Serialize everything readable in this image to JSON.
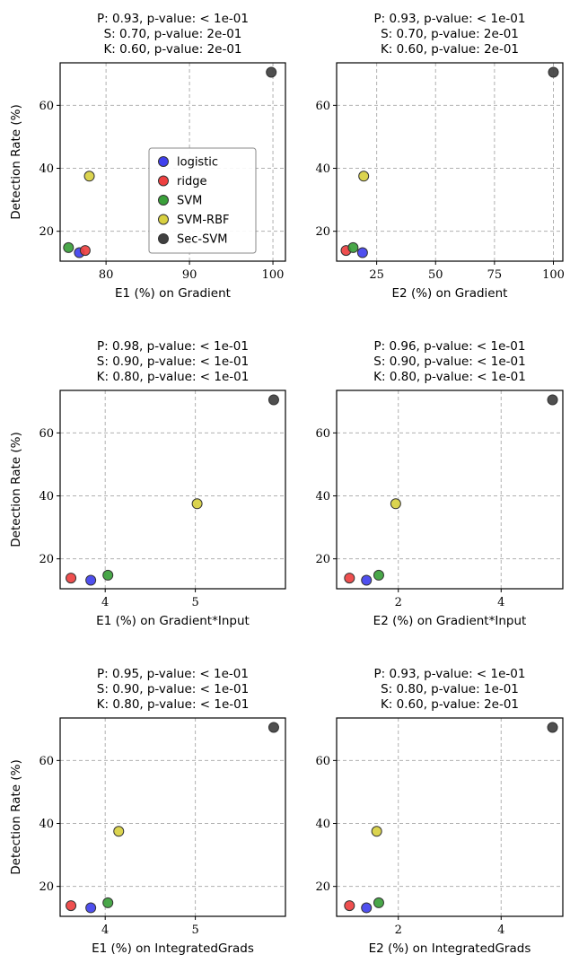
{
  "figure": {
    "ylabel": "Detection Rate (%)"
  },
  "legend": {
    "placement": "inside top-left panel, lower center",
    "entries": [
      {
        "name": "logistic",
        "color": "#4040ee"
      },
      {
        "name": "ridge",
        "color": "#ee4040"
      },
      {
        "name": "SVM",
        "color": "#3aa03a"
      },
      {
        "name": "SVM-RBF",
        "color": "#d8d040"
      },
      {
        "name": "Sec-SVM",
        "color": "#404040"
      }
    ]
  },
  "chart_data": [
    {
      "type": "scatter",
      "title_lines": [
        "P: 0.93, p-value: < 1e-01",
        "S: 0.70, p-value: 2e-01",
        "K: 0.60, p-value: 2e-01"
      ],
      "xlabel": "E1 (%) on Gradient",
      "ylabel": "Detection Rate (%)",
      "xlim": [
        74.5,
        101.5
      ],
      "ylim": [
        10.5,
        73.5
      ],
      "xticks": [
        80,
        90,
        100
      ],
      "yticks": [
        20,
        40,
        60
      ],
      "grid": true,
      "points": [
        {
          "series": "logistic",
          "x": 76.8,
          "y": 13.2
        },
        {
          "series": "ridge",
          "x": 77.5,
          "y": 13.9
        },
        {
          "series": "SVM",
          "x": 75.5,
          "y": 14.8
        },
        {
          "series": "SVM-RBF",
          "x": 78.0,
          "y": 37.5
        },
        {
          "series": "Sec-SVM",
          "x": 99.8,
          "y": 70.5
        }
      ]
    },
    {
      "type": "scatter",
      "title_lines": [
        "P: 0.93, p-value: < 1e-01",
        "S: 0.70, p-value: 2e-01",
        "K: 0.60, p-value: 2e-01"
      ],
      "xlabel": "E2 (%) on Gradient",
      "ylabel": "",
      "xlim": [
        8,
        104
      ],
      "ylim": [
        10.5,
        73.5
      ],
      "xticks": [
        25,
        50,
        75,
        100
      ],
      "yticks": [
        20,
        40,
        60
      ],
      "grid": true,
      "points": [
        {
          "series": "logistic",
          "x": 19.0,
          "y": 13.2
        },
        {
          "series": "ridge",
          "x": 12.0,
          "y": 13.9
        },
        {
          "series": "SVM",
          "x": 15.0,
          "y": 14.8
        },
        {
          "series": "SVM-RBF",
          "x": 19.5,
          "y": 37.5
        },
        {
          "series": "Sec-SVM",
          "x": 100.0,
          "y": 70.5
        }
      ]
    },
    {
      "type": "scatter",
      "title_lines": [
        "P: 0.98, p-value: < 1e-01",
        "S: 0.90, p-value: < 1e-01",
        "K: 0.80, p-value: < 1e-01"
      ],
      "xlabel": "E1 (%) on Gradient*Input",
      "ylabel": "Detection Rate (%)",
      "xlim": [
        3.5,
        6.0
      ],
      "ylim": [
        10.5,
        73.5
      ],
      "xticks": [
        4,
        5
      ],
      "yticks": [
        20,
        40,
        60
      ],
      "grid": true,
      "points": [
        {
          "series": "logistic",
          "x": 3.84,
          "y": 13.2
        },
        {
          "series": "ridge",
          "x": 3.62,
          "y": 13.9
        },
        {
          "series": "SVM",
          "x": 4.03,
          "y": 14.8
        },
        {
          "series": "SVM-RBF",
          "x": 5.02,
          "y": 37.5
        },
        {
          "series": "Sec-SVM",
          "x": 5.87,
          "y": 70.5
        }
      ]
    },
    {
      "type": "scatter",
      "title_lines": [
        "P: 0.96, p-value: < 1e-01",
        "S: 0.90, p-value: < 1e-01",
        "K: 0.80, p-value: < 1e-01"
      ],
      "xlabel": "E2 (%) on Gradient*Input",
      "ylabel": "",
      "xlim": [
        0.8,
        5.2
      ],
      "ylim": [
        10.5,
        73.5
      ],
      "xticks": [
        2,
        4
      ],
      "yticks": [
        20,
        40,
        60
      ],
      "grid": true,
      "points": [
        {
          "series": "logistic",
          "x": 1.38,
          "y": 13.2
        },
        {
          "series": "ridge",
          "x": 1.05,
          "y": 13.9
        },
        {
          "series": "SVM",
          "x": 1.62,
          "y": 14.8
        },
        {
          "series": "SVM-RBF",
          "x": 1.95,
          "y": 37.5
        },
        {
          "series": "Sec-SVM",
          "x": 5.0,
          "y": 70.5
        }
      ]
    },
    {
      "type": "scatter",
      "title_lines": [
        "P: 0.95, p-value: < 1e-01",
        "S: 0.90, p-value: < 1e-01",
        "K: 0.80, p-value: < 1e-01"
      ],
      "xlabel": "E1 (%) on IntegratedGrads",
      "ylabel": "Detection Rate (%)",
      "xlim": [
        3.5,
        6.0
      ],
      "ylim": [
        10.5,
        73.5
      ],
      "xticks": [
        4,
        5
      ],
      "yticks": [
        20,
        40,
        60
      ],
      "grid": true,
      "points": [
        {
          "series": "logistic",
          "x": 3.84,
          "y": 13.2
        },
        {
          "series": "ridge",
          "x": 3.62,
          "y": 13.9
        },
        {
          "series": "SVM",
          "x": 4.03,
          "y": 14.8
        },
        {
          "series": "SVM-RBF",
          "x": 4.15,
          "y": 37.5
        },
        {
          "series": "Sec-SVM",
          "x": 5.87,
          "y": 70.5
        }
      ]
    },
    {
      "type": "scatter",
      "title_lines": [
        "P: 0.93, p-value: < 1e-01",
        "S: 0.80, p-value: 1e-01",
        "K: 0.60, p-value: 2e-01"
      ],
      "xlabel": "E2 (%) on IntegratedGrads",
      "ylabel": "",
      "xlim": [
        0.8,
        5.2
      ],
      "ylim": [
        10.5,
        73.5
      ],
      "xticks": [
        2,
        4
      ],
      "yticks": [
        20,
        40,
        60
      ],
      "grid": true,
      "points": [
        {
          "series": "logistic",
          "x": 1.38,
          "y": 13.2
        },
        {
          "series": "ridge",
          "x": 1.05,
          "y": 13.9
        },
        {
          "series": "SVM",
          "x": 1.62,
          "y": 14.8
        },
        {
          "series": "SVM-RBF",
          "x": 1.58,
          "y": 37.5
        },
        {
          "series": "Sec-SVM",
          "x": 5.0,
          "y": 70.5
        }
      ]
    }
  ]
}
